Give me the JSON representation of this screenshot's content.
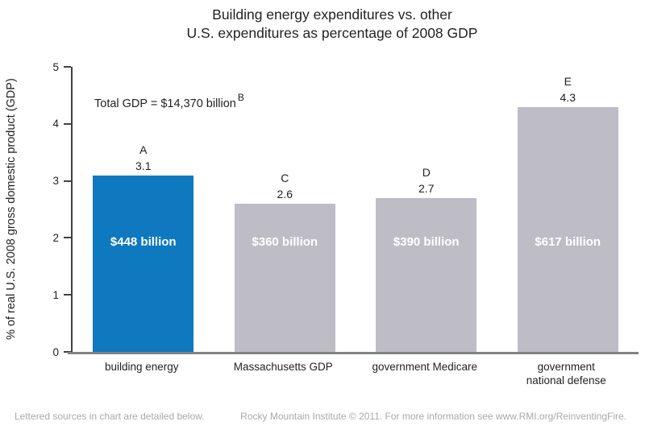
{
  "title": {
    "line1": "Building energy expenditures vs. other",
    "line2": "U.S. expenditures as percentage of 2008 GDP"
  },
  "annotation": {
    "text": "Total GDP = $14,370 billion",
    "source_letter": "B"
  },
  "chart_data": {
    "type": "bar",
    "title": "Building energy expenditures vs. other U.S. expenditures as percentage of 2008 GDP",
    "xlabel": "",
    "ylabel": "% of real U.S. 2008 gross domestic product (GDP)",
    "ylim": [
      0,
      5
    ],
    "yticks": [
      0,
      1,
      2,
      3,
      4,
      5
    ],
    "grid": false,
    "legend": null,
    "annotation": "Total GDP = $14,370 billion",
    "annotation_source_letter": "B",
    "bars": [
      {
        "category": "building energy",
        "category_display": "building energy",
        "value": 3.1,
        "amount": "$448 billion",
        "source_letter": "A",
        "color": "#0F79BF"
      },
      {
        "category": "Massachusetts GDP",
        "category_display": "Massachusetts GDP",
        "value": 2.6,
        "amount": "$360 billion",
        "source_letter": "C",
        "color": "#BEBDC6"
      },
      {
        "category": "government Medicare",
        "category_display": "government Medicare",
        "value": 2.7,
        "amount": "$390 billion",
        "source_letter": "D",
        "color": "#BEBDC6"
      },
      {
        "category": "government national defense",
        "category_display": "government\nnational defense",
        "value": 4.3,
        "amount": "$617 billion",
        "source_letter": "E",
        "color": "#BEBDC6"
      }
    ]
  },
  "footer": {
    "left": "Lettered sources in chart are detailed below.",
    "right": "Rocky Mountain Institute © 2011. For more information see www.RMI.org/ReinventingFire."
  },
  "colors": {
    "highlight_bar": "#0F79BF",
    "default_bar": "#BEBDC6",
    "bar_value_text": "#FFFFFF",
    "y_axis": "#414042",
    "x_axis": "#808285",
    "text": "#231F20",
    "footer_text": "#A7A9AC"
  }
}
